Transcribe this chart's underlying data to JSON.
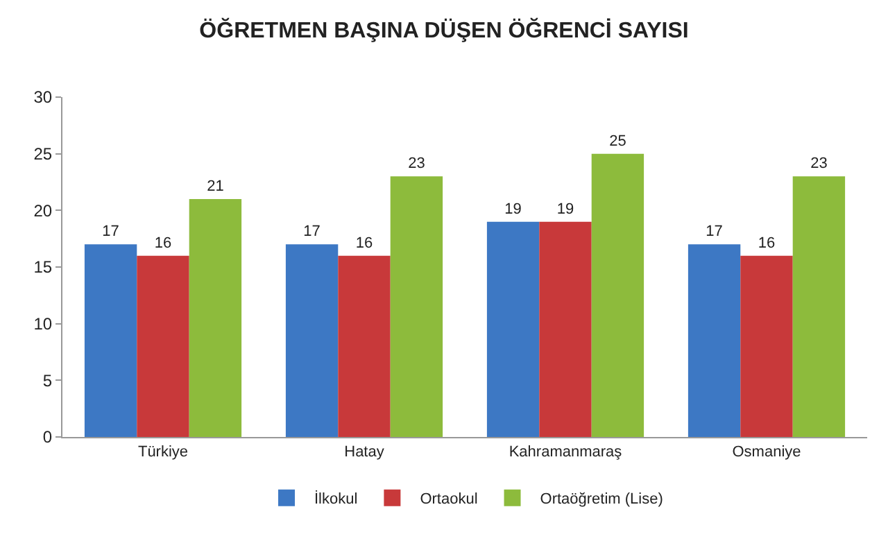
{
  "chart_data": {
    "type": "bar",
    "title": "ÖĞRETMEN BAŞINA DÜŞEN ÖĞRENCİ SAYISI",
    "categories": [
      "Türkiye",
      "Hatay",
      "Kahramanmaraş",
      "Osmaniye"
    ],
    "series": [
      {
        "name": "İlkokul",
        "color": "#3d78c4",
        "values": [
          17,
          17,
          19,
          17
        ]
      },
      {
        "name": "Ortaokul",
        "color": "#c8393a",
        "values": [
          16,
          16,
          19,
          16
        ]
      },
      {
        "name": "Ortaöğretim (Lise)",
        "color": "#8dbb3c",
        "values": [
          21,
          23,
          25,
          23
        ]
      }
    ],
    "ylim": [
      0,
      30
    ],
    "yticks": [
      0,
      5,
      10,
      15,
      20,
      25,
      30
    ],
    "grid": false,
    "legend": "bottom",
    "data_labels": true
  }
}
